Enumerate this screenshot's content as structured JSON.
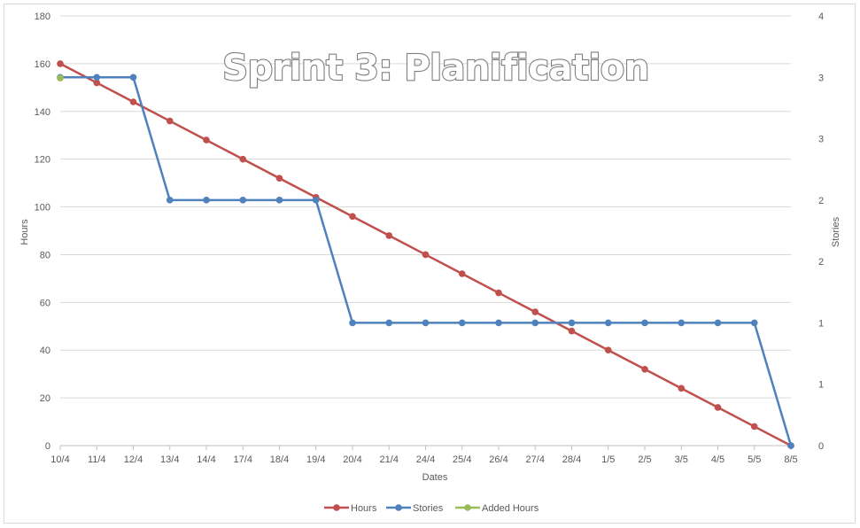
{
  "chart_data": {
    "type": "line",
    "title": "Sprint 3: Planification",
    "xlabel": "Dates",
    "ylabel": "Hours",
    "y2label": "Stories",
    "categories": [
      "10/4",
      "11/4",
      "12/4",
      "13/4",
      "14/4",
      "17/4",
      "18/4",
      "19/4",
      "20/4",
      "21/4",
      "24/4",
      "25/4",
      "26/4",
      "27/4",
      "28/4",
      "1/5",
      "2/5",
      "3/5",
      "4/5",
      "5/5",
      "8/5"
    ],
    "ylim": [
      0,
      180
    ],
    "yticks": [
      0,
      20,
      40,
      60,
      80,
      100,
      120,
      140,
      160,
      180
    ],
    "y2lim": [
      0,
      3.5
    ],
    "y2ticks": [
      0,
      0.5,
      1,
      1.5,
      2,
      2.5,
      3,
      3.5
    ],
    "y2ticklabels": [
      "0",
      "1",
      "1",
      "2",
      "2",
      "3",
      "3",
      "4"
    ],
    "grid": true,
    "legend_position": "bottom",
    "series": [
      {
        "name": "Hours",
        "axis": "left",
        "color": "#c0504d",
        "values": [
          160,
          152,
          144,
          136,
          128,
          120,
          112,
          104,
          96,
          88,
          80,
          72,
          64,
          56,
          48,
          40,
          32,
          24,
          16,
          8,
          0
        ]
      },
      {
        "name": "Stories",
        "axis": "right",
        "color": "#4f81bd",
        "values": [
          3,
          3,
          3,
          2,
          2,
          2,
          2,
          2,
          1,
          1,
          1,
          1,
          1,
          1,
          1,
          1,
          1,
          1,
          1,
          1,
          0
        ]
      },
      {
        "name": "Added Hours",
        "axis": "left",
        "color": "#9bbb59",
        "values": [
          154,
          null,
          null,
          null,
          null,
          null,
          null,
          null,
          null,
          null,
          null,
          null,
          null,
          null,
          null,
          null,
          null,
          null,
          null,
          null,
          null
        ]
      }
    ]
  }
}
